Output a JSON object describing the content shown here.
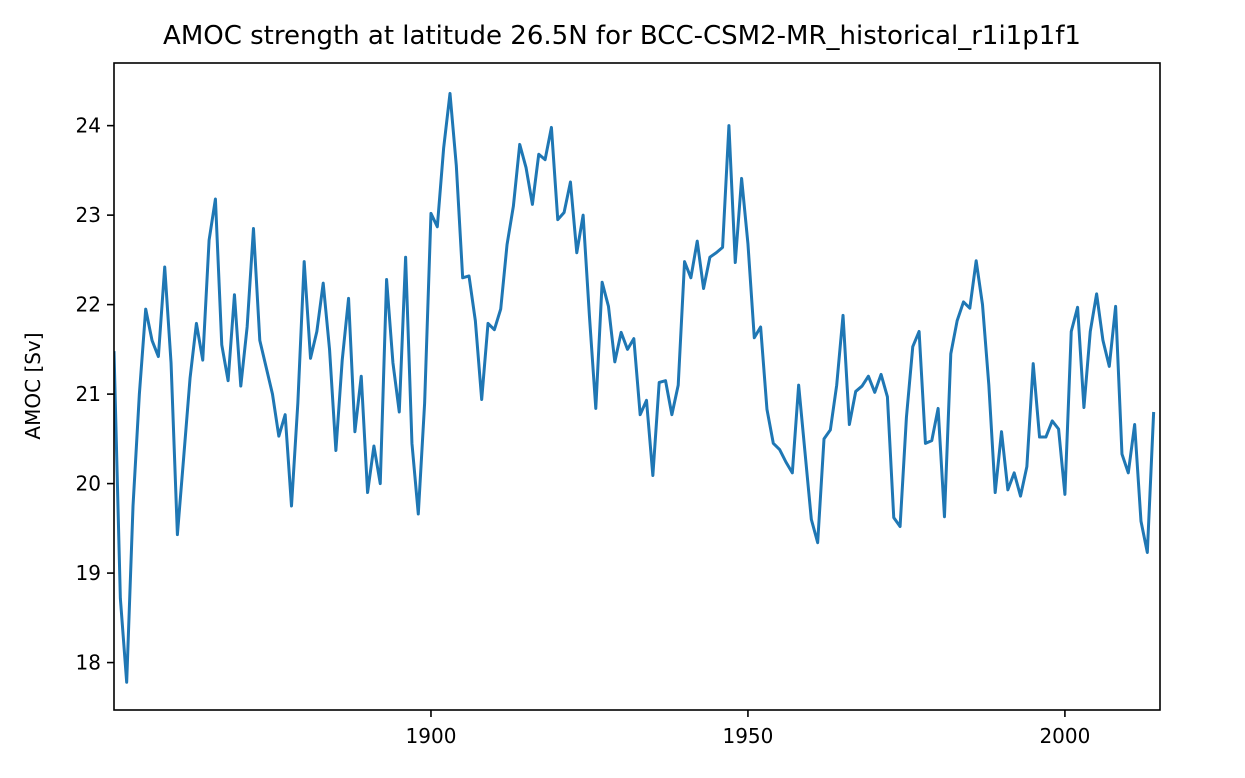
{
  "chart_data": {
    "type": "line",
    "title": "AMOC strength at latitude 26.5N for BCC-CSM2-MR_historical_r1i1p1f1",
    "xlabel": "",
    "ylabel": "AMOC [Sv]",
    "xlim": [
      1850,
      2015
    ],
    "ylim": [
      17.47,
      24.7
    ],
    "xticks": [
      1900,
      1950,
      2000
    ],
    "yticks": [
      18,
      19,
      20,
      21,
      22,
      23,
      24
    ],
    "grid": false,
    "legend": "none",
    "line_color": "#1f77b4",
    "x": [
      1850,
      1851,
      1852,
      1853,
      1854,
      1855,
      1856,
      1857,
      1858,
      1859,
      1860,
      1861,
      1862,
      1863,
      1864,
      1865,
      1866,
      1867,
      1868,
      1869,
      1870,
      1871,
      1872,
      1873,
      1874,
      1875,
      1876,
      1877,
      1878,
      1879,
      1880,
      1881,
      1882,
      1883,
      1884,
      1885,
      1886,
      1887,
      1888,
      1889,
      1890,
      1891,
      1892,
      1893,
      1894,
      1895,
      1896,
      1897,
      1898,
      1899,
      1900,
      1901,
      1902,
      1903,
      1904,
      1905,
      1906,
      1907,
      1908,
      1909,
      1910,
      1911,
      1912,
      1913,
      1914,
      1915,
      1916,
      1917,
      1918,
      1919,
      1920,
      1921,
      1922,
      1923,
      1924,
      1925,
      1926,
      1927,
      1928,
      1929,
      1930,
      1931,
      1932,
      1933,
      1934,
      1935,
      1936,
      1937,
      1938,
      1939,
      1940,
      1941,
      1942,
      1943,
      1944,
      1945,
      1946,
      1947,
      1948,
      1949,
      1950,
      1951,
      1952,
      1953,
      1954,
      1955,
      1956,
      1957,
      1958,
      1959,
      1960,
      1961,
      1962,
      1963,
      1964,
      1965,
      1966,
      1967,
      1968,
      1969,
      1970,
      1971,
      1972,
      1973,
      1974,
      1975,
      1976,
      1977,
      1978,
      1979,
      1980,
      1981,
      1982,
      1983,
      1984,
      1985,
      1986,
      1987,
      1988,
      1989,
      1990,
      1991,
      1992,
      1993,
      1994,
      1995,
      1996,
      1997,
      1998,
      1999,
      2000,
      2001,
      2002,
      2003,
      2004,
      2005,
      2006,
      2007,
      2008,
      2009,
      2010,
      2011,
      2012,
      2013,
      2014
    ],
    "series": [
      {
        "values": [
          21.48,
          18.72,
          17.78,
          19.75,
          21.0,
          21.95,
          21.6,
          21.42,
          22.42,
          21.35,
          19.43,
          20.3,
          21.18,
          21.79,
          21.38,
          22.72,
          23.18,
          21.55,
          21.15,
          22.11,
          21.09,
          21.75,
          22.85,
          21.6,
          21.3,
          21.0,
          20.53,
          20.77,
          19.75,
          20.9,
          22.48,
          21.4,
          21.7,
          22.24,
          21.5,
          20.37,
          21.38,
          22.07,
          20.58,
          21.2,
          19.9,
          20.42,
          20.0,
          22.28,
          21.35,
          20.8,
          22.53,
          20.45,
          19.66,
          20.9,
          23.02,
          22.87,
          23.75,
          24.36,
          23.55,
          22.3,
          22.32,
          21.82,
          20.94,
          21.79,
          21.72,
          21.95,
          22.67,
          23.1,
          23.79,
          23.53,
          23.12,
          23.68,
          23.62,
          23.98,
          22.95,
          23.03,
          23.37,
          22.58,
          23.0,
          21.87,
          20.84,
          22.25,
          21.98,
          21.36,
          21.69,
          21.5,
          21.62,
          20.77,
          20.93,
          20.09,
          21.13,
          21.15,
          20.77,
          21.1,
          22.48,
          22.3,
          22.71,
          22.18,
          22.53,
          22.58,
          22.64,
          24.0,
          22.47,
          23.41,
          22.68,
          21.63,
          21.75,
          20.83,
          20.45,
          20.38,
          20.24,
          20.12,
          21.1,
          20.35,
          19.6,
          19.34,
          20.5,
          20.6,
          21.1,
          21.88,
          20.66,
          21.03,
          21.09,
          21.2,
          21.02,
          21.22,
          20.97,
          19.62,
          19.52,
          20.74,
          21.53,
          21.7,
          20.45,
          20.48,
          20.84,
          19.63,
          21.45,
          21.82,
          22.03,
          21.96,
          22.49,
          22.0,
          21.1,
          19.9,
          20.58,
          19.93,
          20.12,
          19.86,
          20.19,
          21.34,
          20.52,
          20.52,
          20.7,
          20.61,
          19.88,
          21.7,
          21.97,
          20.85,
          21.7,
          22.12,
          21.6,
          21.31,
          21.98,
          20.33,
          20.12,
          20.66,
          19.58,
          19.23,
          20.8
        ]
      }
    ]
  }
}
